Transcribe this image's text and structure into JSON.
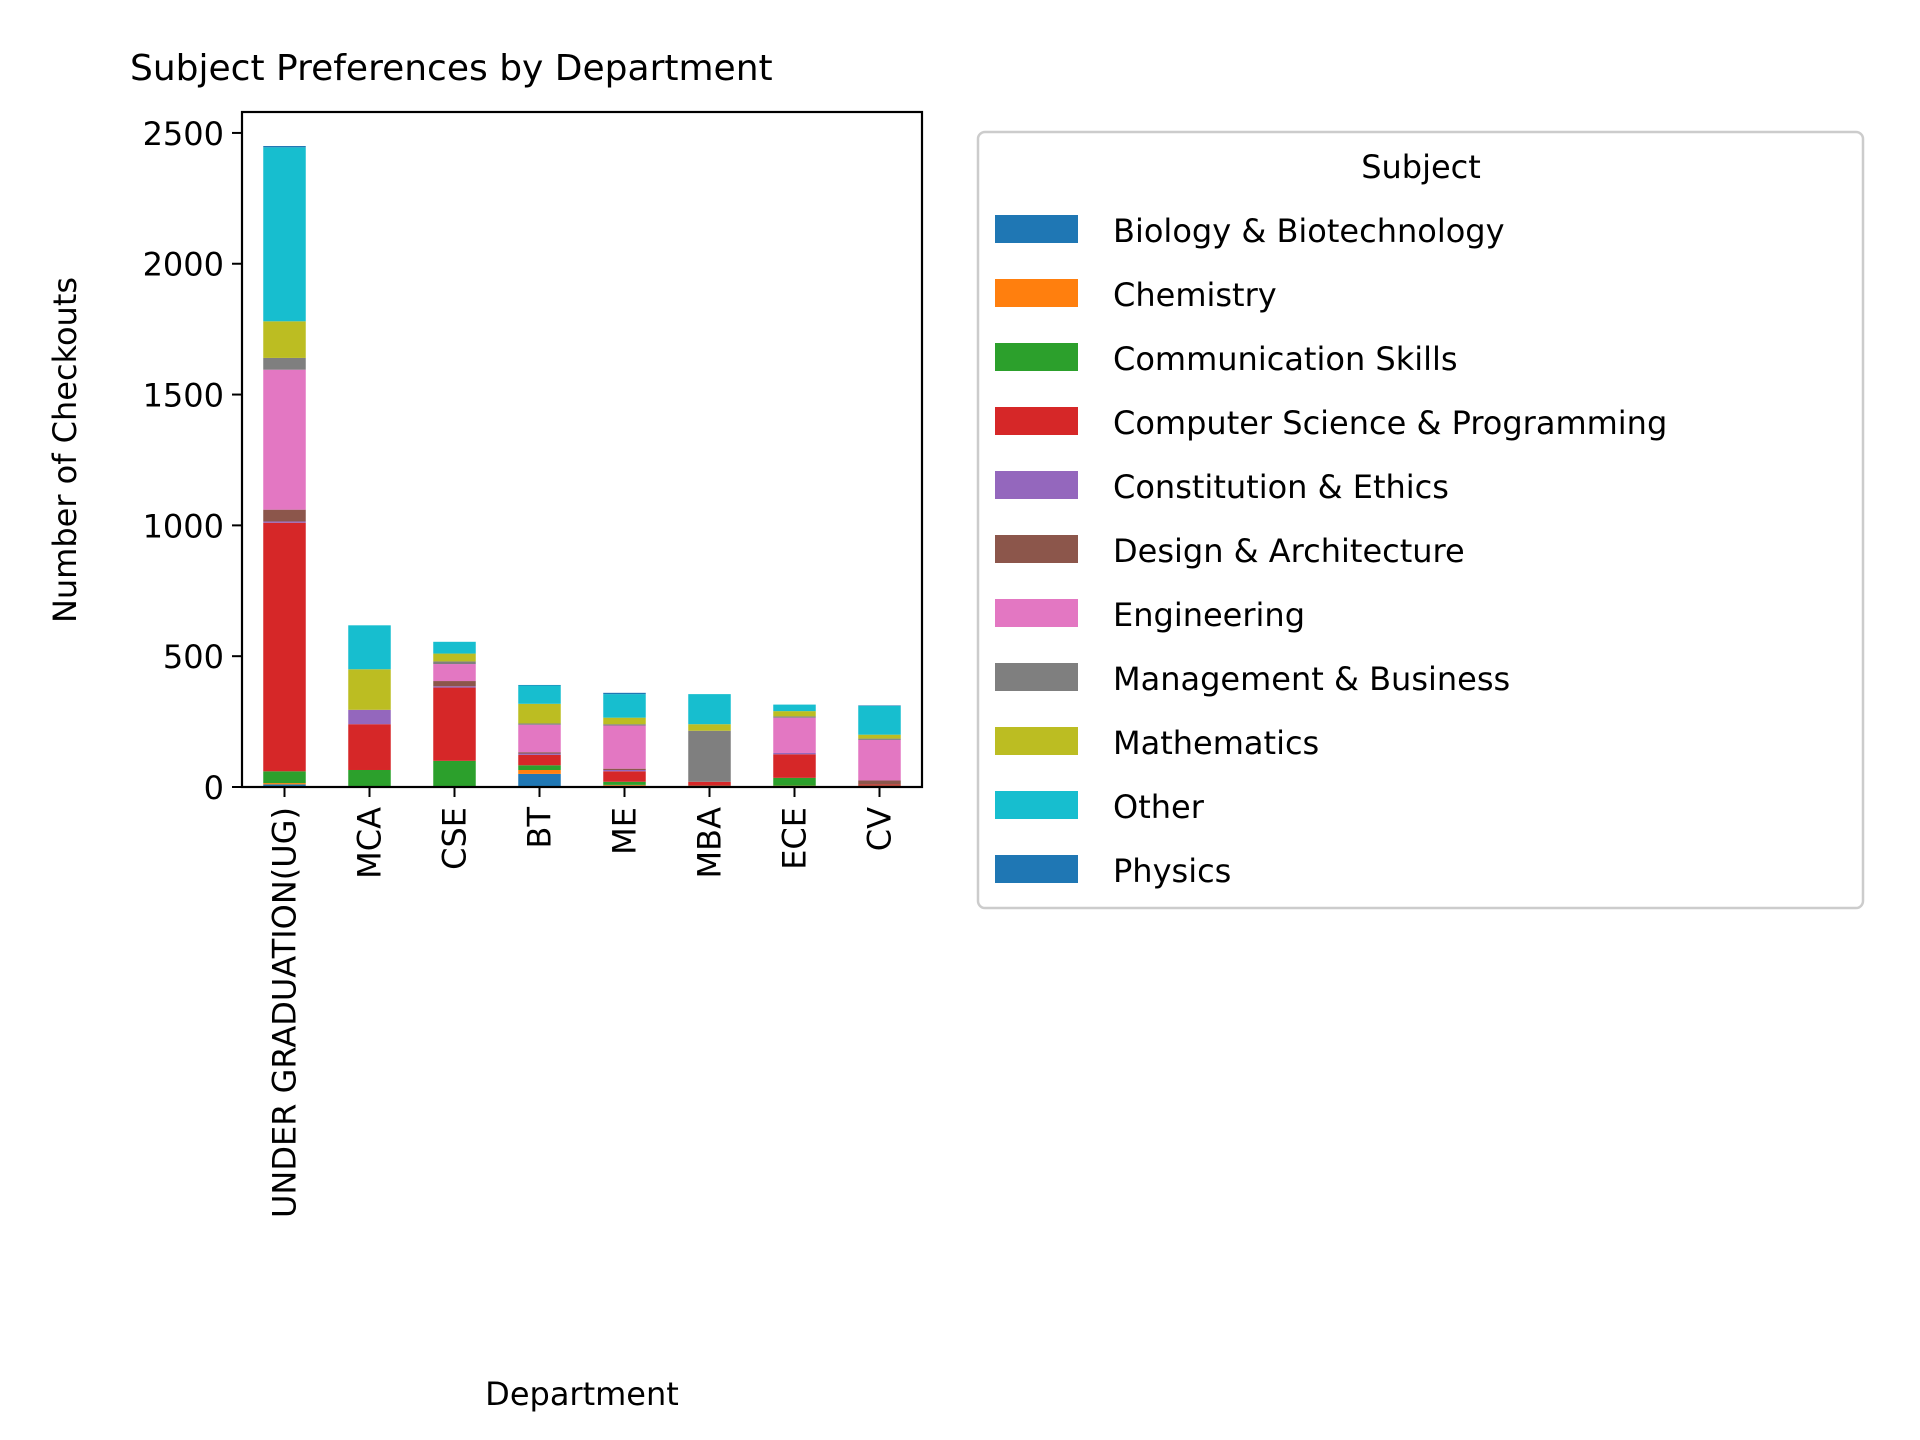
{
  "chart_data": {
    "type": "bar",
    "stacked": true,
    "title": "Subject Preferences by Department",
    "xlabel": "Department",
    "ylabel": "Number of Checkouts",
    "ylim": [
      0,
      2580
    ],
    "yticks": [
      0,
      500,
      1000,
      1500,
      2000,
      2500
    ],
    "categories": [
      "UNDER GRADUATION(UG)",
      "MCA",
      "CSE",
      "BT",
      "ME",
      "MBA",
      "ECE",
      "CV"
    ],
    "legend": {
      "title": "Subject",
      "placement": "outside-right"
    },
    "grid": false,
    "series": [
      {
        "name": "Biology & Biotechnology",
        "color": "#1f77b4",
        "values": [
          10,
          0,
          0,
          50,
          5,
          0,
          3,
          0
        ]
      },
      {
        "name": "Chemistry",
        "color": "#ff7f0e",
        "values": [
          5,
          3,
          2,
          15,
          3,
          0,
          2,
          0
        ]
      },
      {
        "name": "Communication Skills",
        "color": "#2ca02c",
        "values": [
          45,
          62,
          98,
          18,
          12,
          5,
          30,
          5
        ]
      },
      {
        "name": "Computer Science & Programming",
        "color": "#d62728",
        "values": [
          950,
          175,
          280,
          40,
          40,
          15,
          90,
          5
        ]
      },
      {
        "name": "Constitution & Ethics",
        "color": "#9467bd",
        "values": [
          5,
          55,
          5,
          5,
          5,
          0,
          5,
          0
        ]
      },
      {
        "name": "Design & Architecture",
        "color": "#8c564b",
        "values": [
          45,
          0,
          20,
          5,
          5,
          0,
          0,
          15
        ]
      },
      {
        "name": "Engineering",
        "color": "#e377c2",
        "values": [
          535,
          0,
          65,
          105,
          165,
          0,
          135,
          155
        ]
      },
      {
        "name": "Management & Business",
        "color": "#7f7f7f",
        "values": [
          45,
          0,
          10,
          5,
          5,
          195,
          5,
          5
        ]
      },
      {
        "name": "Mathematics",
        "color": "#bcbd22",
        "values": [
          140,
          155,
          30,
          75,
          25,
          25,
          20,
          15
        ]
      },
      {
        "name": "Other",
        "color": "#17becf",
        "values": [
          665,
          168,
          45,
          70,
          90,
          115,
          25,
          110
        ]
      },
      {
        "name": "Physics",
        "color": "#1f77b4",
        "values": [
          5,
          0,
          0,
          2,
          5,
          0,
          0,
          2
        ]
      }
    ]
  }
}
